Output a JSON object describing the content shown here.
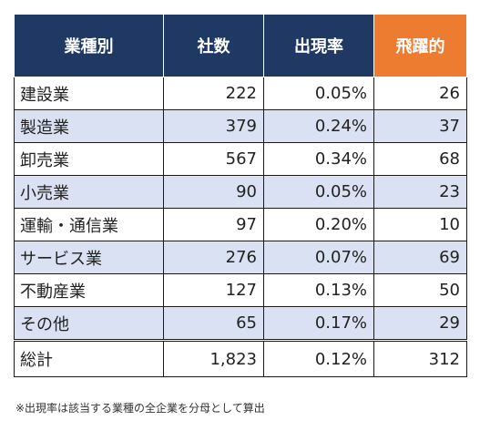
{
  "table": {
    "headers": [
      "業種別",
      "社数",
      "出現率",
      "飛躍的"
    ],
    "rows": [
      {
        "industry": "建設業",
        "count": "222",
        "rate": "0.05%",
        "leap": "26"
      },
      {
        "industry": "製造業",
        "count": "379",
        "rate": "0.24%",
        "leap": "37"
      },
      {
        "industry": "卸売業",
        "count": "567",
        "rate": "0.34%",
        "leap": "68"
      },
      {
        "industry": "小売業",
        "count": "90",
        "rate": "0.05%",
        "leap": "23"
      },
      {
        "industry": "運輸・通信業",
        "count": "97",
        "rate": "0.20%",
        "leap": "10"
      },
      {
        "industry": "サービス業",
        "count": "276",
        "rate": "0.07%",
        "leap": "69"
      },
      {
        "industry": "不動産業",
        "count": "127",
        "rate": "0.13%",
        "leap": "50"
      },
      {
        "industry": "その他",
        "count": "65",
        "rate": "0.17%",
        "leap": "29"
      }
    ],
    "total": {
      "industry": "総計",
      "count": "1,823",
      "rate": "0.12%",
      "leap": "312"
    }
  },
  "note": "※出現率は該当する業種の全企業を分母として算出",
  "colors": {
    "header_navy": "#1f3864",
    "header_orange": "#ee7c30",
    "band": "#d9e1f2"
  }
}
